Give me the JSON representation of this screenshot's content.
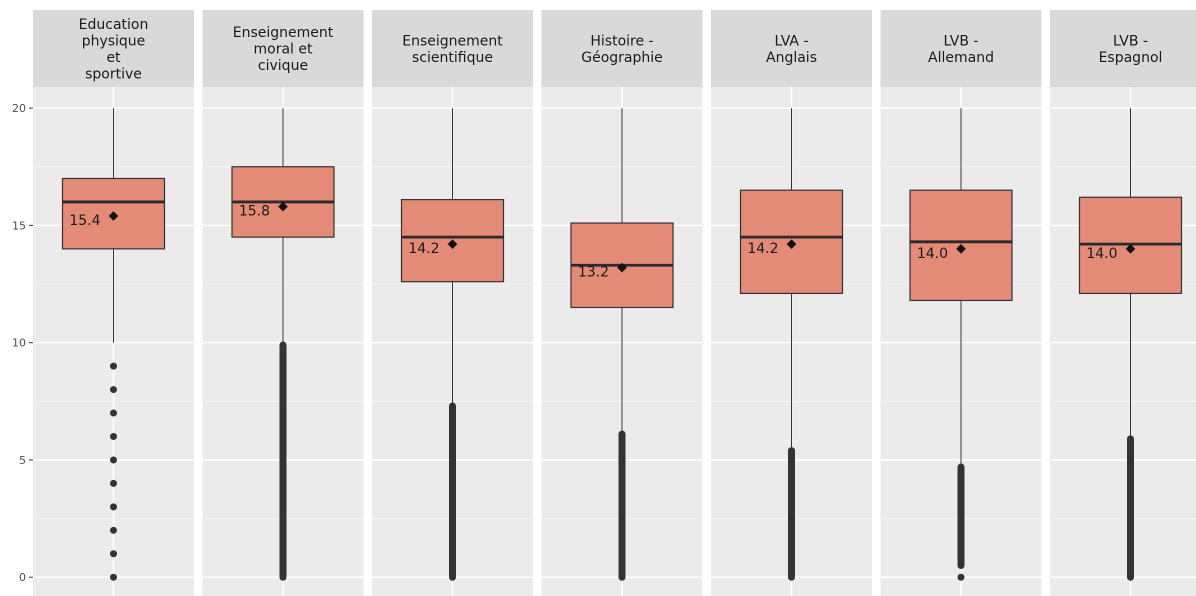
{
  "chart_data": {
    "type": "boxplot",
    "title": "",
    "xlabel": "",
    "ylabel": "",
    "ylim": [
      -0.8,
      20.9
    ],
    "y_ticks": [
      0,
      5,
      10,
      15,
      20
    ],
    "grid": true,
    "colors": {
      "box_fill": "#e38b76",
      "box_stroke": "#333333",
      "panel_bg": "#ebebeb",
      "strip_bg": "#d9d9d9",
      "grid_major": "#ffffff",
      "outlier": "#333333"
    },
    "panels": [
      {
        "label": "Education physique et sportive",
        "label_lines": [
          "Education",
          "physique",
          "et",
          "sportive"
        ],
        "whisker_low": 10,
        "q1": 14,
        "median": 16,
        "q3": 17,
        "whisker_high": 20,
        "mean": 15.4,
        "mean_label": "15.4",
        "outliers": [
          0,
          1,
          2,
          3,
          4,
          5,
          6,
          7,
          8,
          9
        ],
        "outlier_range": null
      },
      {
        "label": "Enseignement moral et civique",
        "label_lines": [
          "Enseignement",
          "moral et",
          "civique"
        ],
        "whisker_low": 10,
        "q1": 14.5,
        "median": 16,
        "q3": 17.5,
        "whisker_high": 20,
        "mean": 15.8,
        "mean_label": "15.8",
        "outliers": [],
        "outlier_range": [
          0,
          9.9
        ]
      },
      {
        "label": "Enseignement scientifique",
        "label_lines": [
          "Enseignement",
          "scientifique"
        ],
        "whisker_low": 7.3,
        "q1": 12.6,
        "median": 14.5,
        "q3": 16.1,
        "whisker_high": 20,
        "mean": 14.2,
        "mean_label": "14.2",
        "outliers": [],
        "outlier_range": [
          0,
          7.3
        ]
      },
      {
        "label": "Histoire - Géographie",
        "label_lines": [
          "Histoire -",
          "Géographie"
        ],
        "whisker_low": 6.1,
        "q1": 11.5,
        "median": 13.3,
        "q3": 15.1,
        "whisker_high": 20,
        "mean": 13.2,
        "mean_label": "13.2",
        "outliers": [],
        "outlier_range": [
          0,
          6.1
        ]
      },
      {
        "label": "LVA - Anglais",
        "label_lines": [
          "LVA -",
          "Anglais"
        ],
        "whisker_low": 5.4,
        "q1": 12.1,
        "median": 14.5,
        "q3": 16.5,
        "whisker_high": 20,
        "mean": 14.2,
        "mean_label": "14.2",
        "outliers": [],
        "outlier_range": [
          0,
          5.4
        ]
      },
      {
        "label": "LVB - Allemand",
        "label_lines": [
          "LVB -",
          "Allemand"
        ],
        "whisker_low": 4.7,
        "q1": 11.8,
        "median": 14.3,
        "q3": 16.5,
        "whisker_high": 20,
        "mean": 14.0,
        "mean_label": "14.0",
        "outliers": [
          0
        ],
        "outlier_range": [
          0.5,
          4.7
        ]
      },
      {
        "label": "LVB - Espagnol",
        "label_lines": [
          "LVB -",
          "Espagnol"
        ],
        "whisker_low": 5.9,
        "q1": 12.1,
        "median": 14.2,
        "q3": 16.2,
        "whisker_high": 20,
        "mean": 14.0,
        "mean_label": "14.0",
        "outliers": [],
        "outlier_range": [
          0,
          5.9
        ]
      }
    ]
  }
}
